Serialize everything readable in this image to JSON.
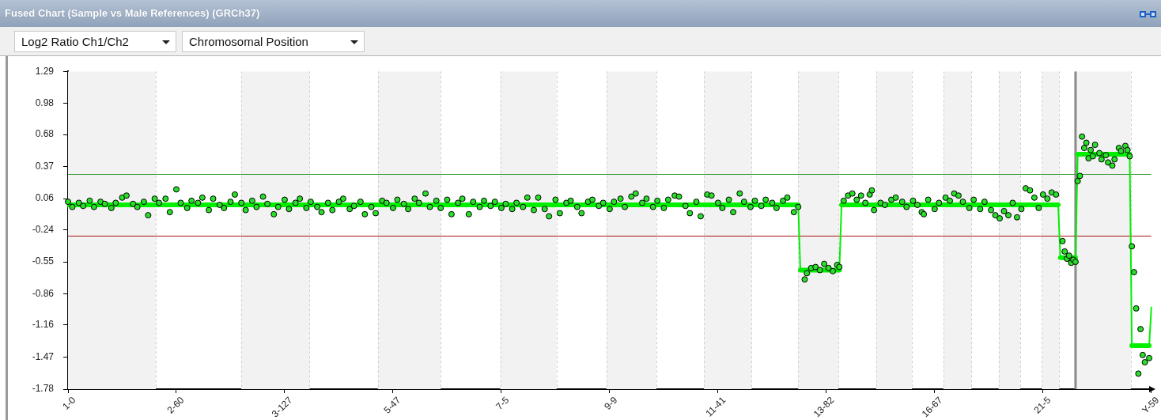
{
  "chart_data": {
    "type": "scatter",
    "title": "Fused Chart (Sample vs Male References) (GRCh37)",
    "ylabel": "Log2 Ratio Ch1/Ch2",
    "xlabel": "Chromosomal Position",
    "categories": [
      "1-0",
      null,
      null,
      null,
      null,
      null,
      null,
      null,
      null,
      null,
      null,
      null,
      null,
      null,
      null,
      null,
      null,
      null,
      null,
      null,
      null,
      null,
      null,
      null,
      null,
      null,
      null,
      null,
      null,
      null,
      null,
      null,
      null,
      null,
      null,
      null,
      null,
      null,
      null,
      null,
      null,
      null,
      null,
      null,
      null,
      null,
      null,
      null,
      null,
      null,
      "2-60",
      null,
      null,
      null,
      null,
      null,
      null,
      null,
      null,
      null,
      null,
      null,
      null,
      null,
      null,
      null,
      null,
      null,
      null,
      null,
      null,
      null,
      null,
      null,
      null,
      null,
      null,
      null,
      null,
      null,
      null,
      null,
      null,
      null,
      null,
      null,
      null,
      null,
      null,
      null,
      null,
      null,
      null,
      null,
      null,
      null,
      null,
      null,
      null,
      null,
      "3-127",
      null,
      null,
      null,
      null,
      null,
      null,
      null,
      null,
      null,
      null,
      null,
      null,
      null,
      null,
      null,
      null,
      null,
      null,
      null,
      null,
      null,
      null,
      null,
      null,
      null,
      null,
      null,
      null,
      null,
      null,
      null,
      null,
      null,
      null,
      null,
      null,
      null,
      null,
      null,
      null,
      null,
      null,
      null,
      null,
      null,
      null,
      null,
      null,
      null,
      "5-47",
      null,
      null,
      null,
      null,
      null,
      null,
      null,
      null,
      null,
      null,
      null,
      null,
      null,
      null,
      null,
      null,
      null,
      null,
      null,
      null,
      null,
      null,
      null,
      null,
      null,
      null,
      null,
      null,
      null,
      null,
      null,
      null,
      null,
      null,
      null,
      null,
      null,
      null,
      null,
      null,
      null,
      null,
      null,
      null,
      null,
      null,
      null,
      null,
      null,
      "7-5",
      null,
      null,
      null,
      null,
      null,
      null,
      null,
      null,
      null,
      null,
      null,
      null,
      null,
      null,
      null,
      null,
      null,
      null,
      null,
      null,
      null,
      null,
      null,
      null,
      null,
      null,
      null,
      null,
      null,
      null,
      null,
      null,
      null,
      null,
      null,
      null,
      null,
      null,
      null,
      null,
      null,
      null,
      null,
      null,
      null,
      null,
      null,
      null,
      null,
      "9-9",
      null,
      null,
      null,
      null,
      null,
      null,
      null,
      null,
      null,
      null,
      null,
      null,
      null,
      null,
      null,
      null,
      null,
      null,
      null,
      null,
      null,
      null,
      null,
      null,
      null,
      null,
      null,
      null,
      null,
      null,
      null,
      null,
      null,
      null,
      null,
      null,
      null,
      null,
      null,
      null,
      null,
      null,
      null,
      null,
      null,
      null,
      null,
      null,
      null,
      "11-41",
      null,
      null,
      null,
      null,
      null,
      null,
      null,
      null,
      null,
      null,
      null,
      null,
      null,
      null,
      null,
      null,
      null,
      null,
      null,
      null,
      null,
      null,
      null,
      null,
      null,
      null,
      null,
      null,
      null,
      null,
      null,
      null,
      null,
      null,
      null,
      null,
      null,
      null,
      null,
      null,
      null,
      null,
      null,
      null,
      null,
      null,
      null,
      null,
      null,
      "13-82",
      null,
      null,
      null,
      null,
      null,
      null,
      null,
      null,
      null,
      null,
      null,
      null,
      null,
      null,
      null,
      null,
      null,
      null,
      null,
      null,
      null,
      null,
      null,
      null,
      null,
      null,
      null,
      null,
      null,
      null,
      null,
      null,
      null,
      null,
      null,
      null,
      null,
      null,
      null,
      null,
      null,
      null,
      null,
      null,
      null,
      null,
      null,
      null,
      null,
      "16-67",
      null,
      null,
      null,
      null,
      null,
      null,
      null,
      null,
      null,
      null,
      null,
      null,
      null,
      null,
      null,
      null,
      null,
      null,
      null,
      null,
      null,
      null,
      null,
      null,
      null,
      null,
      null,
      null,
      null,
      null,
      null,
      null,
      null,
      null,
      null,
      null,
      null,
      null,
      null,
      null,
      null,
      null,
      null,
      null,
      null,
      null,
      null,
      null,
      null,
      "21-5",
      null,
      null,
      null,
      null,
      null,
      null,
      null,
      null,
      null,
      null,
      null,
      null,
      null,
      null,
      null,
      null,
      null,
      null,
      null,
      null,
      null,
      null,
      null,
      null,
      null,
      null,
      null,
      null,
      null,
      null,
      null,
      null,
      null,
      null,
      null,
      null,
      null,
      null,
      null,
      null,
      null,
      null,
      null,
      null,
      null,
      null,
      null,
      null,
      null,
      "Y-59"
    ],
    "ylim": [
      -1.78,
      1.29
    ],
    "yticks": [
      -1.78,
      -1.47,
      -1.16,
      -0.86,
      -0.55,
      -0.24,
      0.06,
      0.37,
      0.68,
      0.98,
      1.29
    ],
    "series": [
      {
        "type": "line",
        "color": "#00f000",
        "values": [
          0,
          0,
          0,
          0,
          0,
          0,
          0,
          0,
          0,
          0,
          0,
          0,
          0,
          0,
          0,
          0,
          0,
          0,
          0,
          0,
          0,
          0,
          0,
          0,
          0,
          0,
          0,
          0,
          0,
          0,
          0,
          0,
          0,
          0,
          0,
          0,
          0,
          0,
          0,
          0,
          0,
          0,
          0,
          0,
          0,
          0,
          0,
          0,
          0,
          0,
          0,
          0,
          0,
          0,
          0,
          0,
          0,
          0,
          0,
          0,
          0,
          0,
          0,
          0,
          0,
          0,
          0,
          0,
          0,
          0,
          0,
          0,
          0,
          0,
          0,
          0,
          0,
          0,
          0,
          0,
          0,
          0,
          0,
          0,
          0,
          0,
          0,
          0,
          0,
          0,
          0,
          0,
          0,
          0,
          0,
          0,
          0,
          0,
          0,
          0,
          0,
          0,
          0,
          0,
          0,
          0,
          0,
          0,
          0,
          0,
          0,
          0,
          0,
          0,
          0,
          0,
          0,
          0,
          0,
          0,
          0,
          0,
          0,
          0,
          0,
          0,
          0,
          0,
          0,
          0,
          0,
          0,
          0,
          0,
          0,
          0,
          0,
          0,
          0,
          0,
          0,
          0,
          0,
          0,
          0,
          0,
          0,
          0,
          0,
          0,
          0,
          0,
          0,
          0,
          0,
          0,
          0,
          0,
          0,
          0,
          0,
          0,
          0,
          0,
          0,
          0,
          0,
          0,
          0,
          0,
          0,
          0,
          0,
          0,
          0,
          0,
          0,
          0,
          0,
          0,
          0,
          0,
          0,
          0,
          0,
          0,
          0,
          0,
          0,
          0,
          0,
          0,
          0,
          0,
          0,
          0,
          0,
          0,
          0,
          0,
          0,
          0,
          0,
          0,
          0,
          0,
          0,
          0,
          0,
          0,
          0,
          0,
          0,
          0,
          0,
          0,
          0,
          0,
          0,
          0,
          0,
          0,
          0,
          0,
          0,
          0,
          0,
          0,
          0,
          0,
          0,
          0,
          0,
          0,
          0,
          0,
          0,
          0,
          0,
          0,
          0,
          0,
          0,
          0,
          0,
          0,
          0,
          0,
          0,
          0,
          0,
          0,
          0,
          0,
          0,
          0,
          0,
          0,
          0,
          0,
          0,
          0,
          0,
          0,
          0,
          0,
          0,
          0,
          0,
          0,
          0,
          0,
          0,
          0,
          0,
          0,
          0,
          0,
          0,
          0,
          0,
          0,
          0,
          0,
          0,
          0,
          0,
          0,
          0,
          0,
          0,
          0,
          0,
          0,
          0,
          0,
          0,
          0,
          0,
          0,
          0,
          0,
          0,
          0,
          0,
          0,
          0,
          0,
          0,
          0,
          0,
          0,
          0,
          0,
          0,
          0,
          0,
          0,
          0,
          0,
          0,
          0,
          0,
          0,
          0,
          0,
          0,
          0,
          0,
          0,
          0,
          0,
          0,
          0,
          0,
          0,
          0,
          0,
          -0.63,
          -0.63,
          -0.63,
          -0.63,
          -0.63,
          -0.63,
          -0.63,
          -0.63,
          -0.63,
          -0.63,
          -0.63,
          -0.63,
          -0.63,
          -0.63,
          -0.63,
          -0.63,
          -0.63,
          -0.63,
          -0.63,
          0,
          0,
          0,
          0,
          0,
          0,
          0,
          0,
          0,
          0,
          0,
          0,
          0,
          0,
          0,
          0,
          0,
          0,
          0,
          0,
          0,
          0,
          0,
          0,
          0,
          0,
          0,
          0,
          0,
          0,
          0,
          0,
          0,
          0,
          0,
          0,
          0,
          0,
          0,
          0,
          0,
          0,
          0,
          0,
          0,
          0,
          0,
          0,
          0,
          0,
          0,
          0,
          0,
          0,
          0,
          0,
          0,
          0,
          0,
          0,
          0,
          0,
          0,
          0,
          0,
          0,
          0,
          0,
          0,
          0,
          0,
          0,
          0,
          0,
          0,
          0,
          0,
          0,
          0,
          0,
          0,
          0,
          0,
          0,
          0,
          0,
          0,
          0,
          0,
          0,
          0,
          0,
          0,
          0,
          0,
          0,
          0,
          0,
          0,
          0,
          0,
          -0.51,
          -0.51,
          -0.51,
          -0.51,
          -0.51,
          -0.51,
          -0.51,
          -0.51,
          0.49,
          0.49,
          0.49,
          0.49,
          0.49,
          0.49,
          0.49,
          0.49,
          0.49,
          0.49,
          0.49,
          0.49,
          0.49,
          0.49,
          0.49,
          0.49,
          0.49,
          0.49,
          0.49,
          0.49,
          0.49,
          0.49,
          0.49,
          0.49,
          0.49,
          -1.36,
          -1.36,
          -1.36,
          -1.36,
          -1.36,
          -1.36,
          -1.36,
          -1.36,
          -1.36,
          -0.99
        ]
      },
      {
        "color": "#2bde2b",
        "marker": "circle",
        "values": [
          0.03,
          null,
          -0.02,
          null,
          null,
          0.02,
          null,
          -0.01,
          null,
          null,
          0.04,
          null,
          -0.02,
          null,
          null,
          0.03,
          null,
          0.01,
          null,
          null,
          -0.03,
          null,
          0.02,
          null,
          null,
          0.07,
          null,
          0.09,
          null,
          null,
          0.01,
          null,
          -0.02,
          null,
          null,
          0.03,
          null,
          -0.1,
          null,
          null,
          0.06,
          null,
          0.02,
          null,
          null,
          0.06,
          null,
          -0.07,
          null,
          null,
          0.15,
          null,
          0.02,
          null,
          null,
          -0.03,
          null,
          0.04,
          null,
          null,
          0.02,
          null,
          0.07,
          null,
          null,
          -0.05,
          null,
          0.06,
          null,
          null,
          0,
          null,
          -0.03,
          null,
          null,
          0.03,
          null,
          0.1,
          null,
          null,
          0.02,
          null,
          -0.05,
          null,
          null,
          0.04,
          null,
          -0.02,
          null,
          null,
          0.08,
          null,
          0.01,
          null,
          null,
          -0.09,
          null,
          -0.02,
          null,
          null,
          0.05,
          null,
          -0.04,
          null,
          null,
          0.02,
          null,
          0.06,
          null,
          null,
          -0.03,
          null,
          0.03,
          null,
          null,
          -0.02,
          null,
          -0.07,
          null,
          null,
          0.02,
          null,
          -0.05,
          null,
          null,
          0.03,
          null,
          0.06,
          null,
          null,
          -0.04,
          null,
          -0.01,
          null,
          null,
          0.03,
          null,
          -0.09,
          null,
          null,
          -0.02,
          null,
          -0.08,
          null,
          null,
          0.04,
          null,
          0.02,
          null,
          null,
          -0.03,
          null,
          0.05,
          null,
          null,
          0.01,
          null,
          -0.04,
          null,
          null,
          0.06,
          null,
          0.02,
          null,
          null,
          0.11,
          null,
          -0.02,
          null,
          null,
          0.04,
          null,
          -0.03,
          null,
          null,
          0.05,
          null,
          -0.09,
          null,
          null,
          0.02,
          null,
          0.06,
          null,
          null,
          -0.09,
          null,
          0.03,
          null,
          null,
          -0.02,
          null,
          0.04,
          null,
          null,
          -0.01,
          null,
          0.03,
          null,
          null,
          -0.03,
          null,
          0.01,
          null,
          null,
          -0.04,
          null,
          0.02,
          null,
          null,
          -0.02,
          null,
          0.07,
          null,
          null,
          -0.05,
          null,
          0.07,
          null,
          null,
          -0.04,
          null,
          -0.11,
          null,
          null,
          0.05,
          null,
          -0.08,
          null,
          null,
          0.02,
          null,
          0.04,
          null,
          null,
          -0.02,
          null,
          -0.08,
          null,
          null,
          0.03,
          null,
          0.05,
          null,
          null,
          -0.01,
          null,
          0.02,
          null,
          null,
          -0.04,
          null,
          0.03,
          null,
          null,
          0.06,
          null,
          -0.02,
          null,
          null,
          0.08,
          null,
          0.11,
          null,
          null,
          0.02,
          null,
          0.06,
          null,
          null,
          -0.02,
          null,
          0.04,
          null,
          null,
          -0.03,
          null,
          0.05,
          null,
          null,
          0.09,
          null,
          0.08,
          null,
          null,
          -0.01,
          null,
          -0.08,
          null,
          null,
          0.03,
          null,
          -0.11,
          null,
          null,
          0.1,
          null,
          0.09,
          null,
          null,
          0.02,
          null,
          -0.03,
          null,
          null,
          0.05,
          null,
          -0.07,
          null,
          null,
          0.11,
          null,
          0.03,
          null,
          null,
          -0.02,
          null,
          0.04,
          null,
          null,
          -0.01,
          null,
          0.05,
          null,
          null,
          0.02,
          null,
          -0.03,
          null,
          null,
          0.04,
          null,
          0.07,
          null,
          null,
          -0.07,
          null,
          -0.02,
          null,
          null,
          -0.72,
          -0.66,
          null,
          -0.61,
          null,
          -0.6,
          null,
          -0.63,
          null,
          -0.57,
          null,
          -0.61,
          null,
          -0.64,
          null,
          -0.58,
          -0.6,
          null,
          0.04,
          null,
          0.09,
          null,
          0.11,
          null,
          0.05,
          null,
          0.09,
          null,
          0.02,
          null,
          0.1,
          0.14,
          -0.05,
          null,
          null,
          0.02,
          null,
          0,
          null,
          null,
          0.05,
          null,
          0.07,
          null,
          null,
          0.03,
          null,
          -0.02,
          null,
          null,
          0.04,
          null,
          0,
          null,
          -0.07,
          -0.09,
          null,
          0.05,
          null,
          null,
          -0.04,
          null,
          0.02,
          null,
          null,
          0.07,
          null,
          0.04,
          null,
          0.11,
          null,
          0.09,
          null,
          0.03,
          null,
          null,
          -0.03,
          null,
          0.05,
          null,
          null,
          -0.04,
          null,
          0.03,
          null,
          null,
          -0.05,
          null,
          -0.1,
          null,
          -0.13,
          null,
          -0.06,
          null,
          -0.1,
          null,
          0.02,
          null,
          -0.12,
          null,
          -0.04,
          null,
          0.16,
          null,
          0.14,
          null,
          0.07,
          null,
          -0.03,
          null,
          0.1,
          null,
          0.06,
          null,
          0.12,
          null,
          0.1,
          null,
          null,
          -0.35,
          -0.45,
          -0.52,
          -0.49,
          -0.56,
          -0.53,
          -0.55,
          0.23,
          0.28,
          0.66,
          0.55,
          0.6,
          0.45,
          0.53,
          0.47,
          0.58,
          null,
          0.5,
          0.44,
          null,
          0.48,
          0.41,
          null,
          0.38,
          0.44,
          null,
          0.55,
          0.52,
          null,
          0.57,
          0.53,
          0.47,
          -0.4,
          -0.65,
          -1,
          -1.63,
          -1.2,
          -1.45,
          -1.52,
          null,
          -1.48,
          null
        ]
      }
    ],
    "ref_lines": [
      {
        "axis": "y",
        "value": 0.3,
        "color": "#3c9a3c"
      },
      {
        "axis": "y",
        "value": -0.3,
        "color": "#a31515"
      }
    ]
  }
}
